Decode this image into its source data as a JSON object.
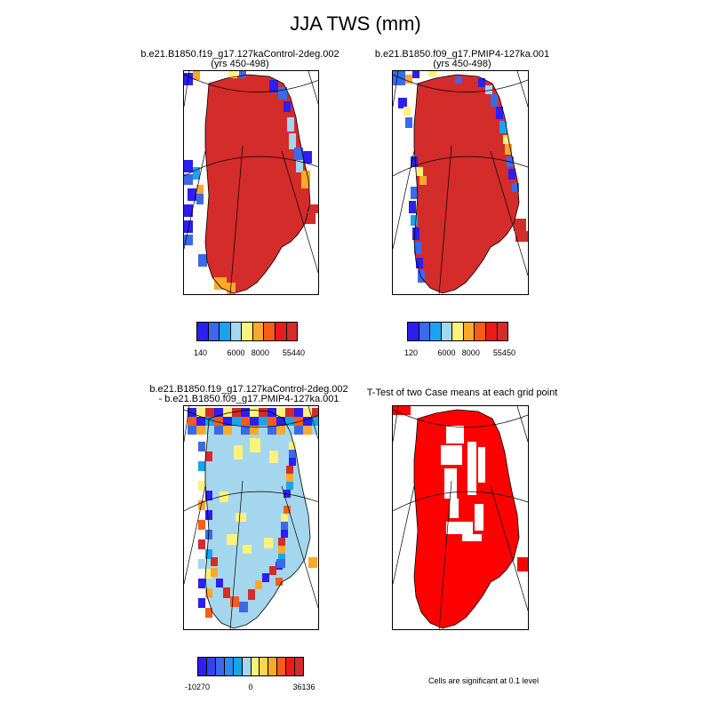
{
  "title": "JJA TWS (mm)",
  "panels": [
    {
      "title_line1": "b.e21.B1850.f19_g17.127kaControl-2deg.002",
      "title_line2": "(yrs 450-498)",
      "colorbar": {
        "colors": [
          "#2d1ef2",
          "#3a6ae8",
          "#19a4f0",
          "#a4d7ee",
          "#fff27a",
          "#fca82a",
          "#f65d19",
          "#ef1919",
          "#d42b2b"
        ],
        "labels": [
          "140",
          "6000",
          "8000",
          "55440"
        ]
      }
    },
    {
      "title_line1": "b.e21.B1850.f09_g17.PMIP4-127ka.001",
      "title_line2": "(yrs 450-498)",
      "colorbar": {
        "colors": [
          "#2d1ef2",
          "#3a6ae8",
          "#19a4f0",
          "#a4d7ee",
          "#fff27a",
          "#fca82a",
          "#f65d19",
          "#ef1919",
          "#d42b2b"
        ],
        "labels": [
          "120",
          "6000",
          "8000",
          "55450"
        ]
      }
    },
    {
      "title_line1": "b.e21.B1850.f19_g17.127kaControl-2deg.002",
      "title_line2": "- b.e21.B1850.f09_g17.PMIP4-127ka.001",
      "colorbar": {
        "colors": [
          "#2d1ef2",
          "#3044e8",
          "#3a6ae8",
          "#2b8bee",
          "#19a4f0",
          "#a4d7ee",
          "#fff27a",
          "#fdd64a",
          "#fca82a",
          "#f65d19",
          "#ef1919",
          "#d42b2b"
        ],
        "labels": [
          "-10270",
          "0",
          "36136"
        ]
      }
    },
    {
      "title_line1": "T-Test of two Case means at each grid point",
      "title_line2": "",
      "note": "Cells are significant at 0.1 level"
    }
  ]
}
